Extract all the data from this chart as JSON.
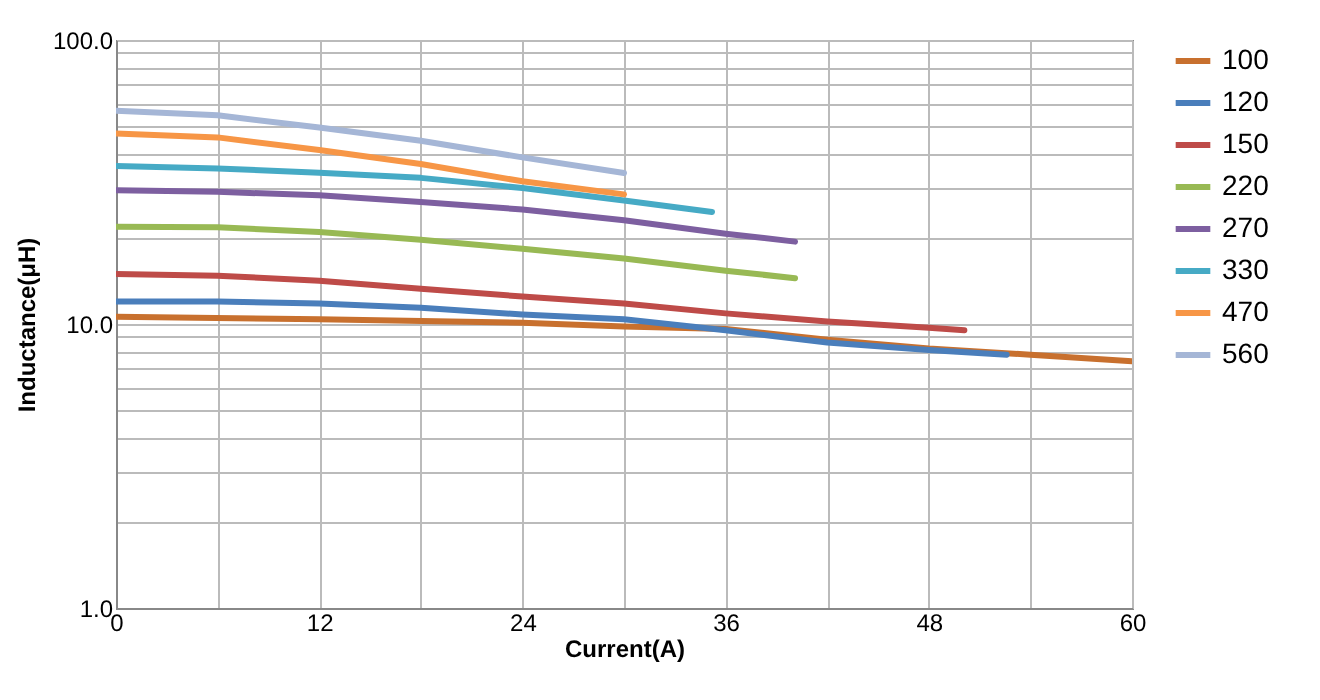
{
  "chart_data": {
    "type": "line",
    "xlabel": "Current(A)",
    "ylabel": "Inductance(μH)",
    "log": "y",
    "grid": true,
    "legend": "right",
    "marker": "none",
    "line_style": "solid",
    "xlim": [
      0,
      60
    ],
    "ylim": [
      1,
      100
    ],
    "xticks": [
      0,
      {
        "value": 6,
        "label": null
      },
      12,
      {
        "value": 18,
        "label": null
      },
      24,
      {
        "value": 30,
        "label": null
      },
      36,
      {
        "value": 42,
        "label": null
      },
      48,
      {
        "value": 54,
        "label": null
      },
      60
    ],
    "yticks": [
      {
        "value": 1,
        "label": "1.0"
      },
      {
        "value": 2,
        "label": null
      },
      {
        "value": 3,
        "label": null
      },
      {
        "value": 4,
        "label": null
      },
      {
        "value": 5,
        "label": null
      },
      {
        "value": 6,
        "label": null
      },
      {
        "value": 7,
        "label": null
      },
      {
        "value": 8,
        "label": null
      },
      {
        "value": 9,
        "label": null
      },
      {
        "value": 10,
        "label": "10.0"
      },
      {
        "value": 20,
        "label": null
      },
      {
        "value": 30,
        "label": null
      },
      {
        "value": 40,
        "label": null
      },
      {
        "value": 50,
        "label": null
      },
      {
        "value": 60,
        "label": null
      },
      {
        "value": 70,
        "label": null
      },
      {
        "value": 80,
        "label": null
      },
      {
        "value": 90,
        "label": null
      },
      {
        "value": 100,
        "label": "100.0"
      }
    ],
    "series": [
      {
        "name": "100",
        "color": "#c8702e",
        "x": [
          0,
          12,
          24,
          30,
          36,
          42,
          48,
          54,
          60
        ],
        "values": [
          10.6,
          10.4,
          10.1,
          9.8,
          9.6,
          8.8,
          8.2,
          7.8,
          7.4
        ]
      },
      {
        "name": "120",
        "color": "#4a7ebb",
        "x": [
          0,
          6,
          12,
          18,
          24,
          30,
          36,
          42,
          48,
          52.6
        ],
        "values": [
          12,
          12,
          11.8,
          11.4,
          10.8,
          10.4,
          9.5,
          8.6,
          8.1,
          7.8
        ]
      },
      {
        "name": "150",
        "color": "#be4b48",
        "x": [
          0,
          6,
          12,
          18,
          24,
          30,
          36,
          42,
          48,
          50.1
        ],
        "values": [
          15,
          14.8,
          14.2,
          13.3,
          12.5,
          11.8,
          10.9,
          10.2,
          9.7,
          9.5
        ]
      },
      {
        "name": "220",
        "color": "#98b954",
        "x": [
          0,
          6,
          12,
          18,
          24,
          30,
          36,
          40.1
        ],
        "values": [
          22,
          21.9,
          21.1,
          19.8,
          18.4,
          17,
          15.4,
          14.5
        ]
      },
      {
        "name": "270",
        "color": "#7d5fa0",
        "x": [
          0,
          6,
          12,
          18,
          24,
          30,
          36,
          40.1
        ],
        "values": [
          29.6,
          29.2,
          28.4,
          26.9,
          25.3,
          23.2,
          20.8,
          19.5
        ]
      },
      {
        "name": "330",
        "color": "#46aac5",
        "x": [
          0,
          6,
          12,
          18,
          24,
          30,
          35.2
        ],
        "values": [
          36,
          35.3,
          34.1,
          32.7,
          30.1,
          27.2,
          24.8
        ]
      },
      {
        "name": "470",
        "color": "#f79646",
        "x": [
          0,
          6,
          12,
          18,
          24,
          30
        ],
        "values": [
          46.9,
          45.4,
          41,
          36.6,
          31.8,
          28.6
        ]
      },
      {
        "name": "560",
        "color": "#a5b6d6",
        "x": [
          0,
          6,
          12,
          18,
          24,
          30
        ],
        "values": [
          56.4,
          54.3,
          49.2,
          44.2,
          38.6,
          34
        ]
      }
    ]
  }
}
